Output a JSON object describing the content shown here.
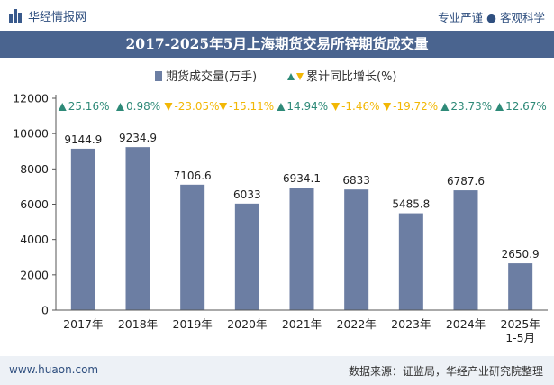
{
  "header": {
    "brand": "华经情报网",
    "tagline": "专业严谨 ● 客观科学"
  },
  "footer": {
    "website": "www.huaon.com",
    "source": "数据来源：证监局，华经产业研究院整理"
  },
  "colors": {
    "bar": "#6c7ea3",
    "up": "#2e8a78",
    "down": "#f2b705",
    "title_bg": "#4a648f"
  },
  "chart_data": {
    "type": "bar",
    "title": "2017-2025年5月上海期货交易所锌期货成交量",
    "categories": [
      "2017年",
      "2018年",
      "2019年",
      "2020年",
      "2021年",
      "2022年",
      "2023年",
      "2024年",
      "2025年\n1-5月"
    ],
    "series": [
      {
        "name": "期货成交量(万手)",
        "values": [
          9144.9,
          9234.9,
          7106.6,
          6033,
          6934.1,
          6833,
          5485.8,
          6787.6,
          2650.9
        ]
      },
      {
        "name": "累计同比增长(%)",
        "values": [
          25.16,
          0.98,
          -23.05,
          -15.11,
          14.94,
          -1.46,
          -19.72,
          23.73,
          12.67
        ]
      }
    ],
    "ylim": [
      0,
      12000
    ],
    "yticks": [
      0,
      2000,
      4000,
      6000,
      8000,
      10000,
      12000
    ],
    "value_labels": [
      "9144.9",
      "9234.9",
      "7106.6",
      "6033",
      "6934.1",
      "6833",
      "5485.8",
      "6787.6",
      "2650.9"
    ],
    "growth_labels": [
      "25.16%",
      "0.98%",
      "-23.05%",
      "-15.11%",
      "14.94%",
      "-1.46%",
      "-19.72%",
      "23.73%",
      "12.67%"
    ],
    "legend_placement": "top-center",
    "grid": false
  }
}
